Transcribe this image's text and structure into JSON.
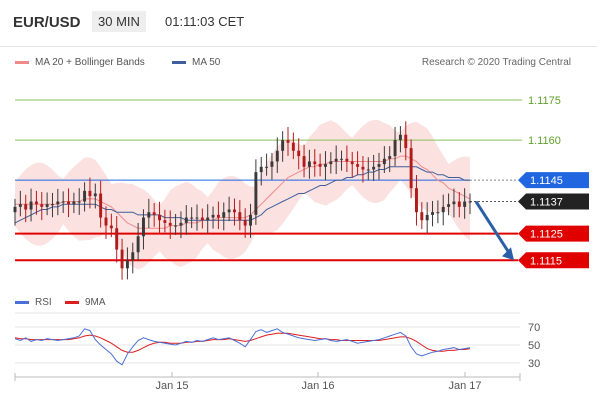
{
  "header": {
    "pair": "EUR/USD",
    "timeframe": "30 MIN",
    "time": "01:11:03 CET"
  },
  "legend": {
    "ma20": "MA 20 + Bollinger Bands",
    "ma50": "MA 50",
    "ma20_color": "#f08a8a",
    "ma50_color": "#3f5f9a"
  },
  "credit": "Research © 2020 Trading Central",
  "rsi_legend": {
    "rsi": "RSI",
    "ma": "9MA",
    "rsi_color": "#4a6fd6",
    "ma_color": "#dd1e1e"
  },
  "chart_data": [
    {
      "type": "candlestick",
      "ylim": [
        1.1105,
        1.1181
      ],
      "price_levels": [
        {
          "value": 1.1175,
          "label": "1.1175",
          "color": "#8ac15a",
          "kind": "resistance"
        },
        {
          "value": 1.116,
          "label": "1.1160",
          "color": "#8ac15a",
          "kind": "resistance"
        },
        {
          "value": 1.1145,
          "label": "1.1145",
          "color": "#1f66e0",
          "kind": "pivot"
        },
        {
          "value": 1.1137,
          "label": "1.1137",
          "color": "#222222",
          "kind": "last"
        },
        {
          "value": 1.1125,
          "label": "1.1125",
          "color": "#e00000",
          "kind": "support"
        },
        {
          "value": 1.1115,
          "label": "1.1115",
          "color": "#e00000",
          "kind": "support"
        }
      ],
      "x_ticks": [
        "Jan 15",
        "Jan 16",
        "Jan 17"
      ],
      "close_path": [
        1.1135,
        1.1136,
        1.1134,
        1.1137,
        1.1136,
        1.1135,
        1.1136,
        1.1136,
        1.1137,
        1.1137,
        1.1136,
        1.1137,
        1.1137,
        1.1141,
        1.1139,
        1.114,
        1.1131,
        1.1128,
        1.1127,
        1.1119,
        1.1112,
        1.1115,
        1.1118,
        1.1124,
        1.1131,
        1.1133,
        1.1132,
        1.113,
        1.1129,
        1.1128,
        1.1128,
        1.1129,
        1.1131,
        1.1131,
        1.1131,
        1.113,
        1.1131,
        1.1132,
        1.1131,
        1.1133,
        1.1134,
        1.1133,
        1.113,
        1.1128,
        1.1132,
        1.1148,
        1.115,
        1.115,
        1.1152,
        1.1156,
        1.116,
        1.1159,
        1.1156,
        1.1154,
        1.115,
        1.1152,
        1.1151,
        1.115,
        1.1151,
        1.1152,
        1.1153,
        1.1153,
        1.1152,
        1.1151,
        1.115,
        1.1149,
        1.1149,
        1.115,
        1.1151,
        1.1153,
        1.1154,
        1.116,
        1.1162,
        1.1157,
        1.1142,
        1.1133,
        1.113,
        1.1132,
        1.1133,
        1.1133,
        1.1135,
        1.1136,
        1.1137,
        1.1135,
        1.1137,
        1.1137
      ],
      "ma20": [
        1.1136,
        1.1136,
        1.1136,
        1.1136,
        1.1136,
        1.1136,
        1.1136,
        1.1136,
        1.1136,
        1.1137,
        1.1137,
        1.1137,
        1.1137,
        1.1138,
        1.1138,
        1.1138,
        1.1137,
        1.1136,
        1.1135,
        1.1133,
        1.1131,
        1.1129,
        1.1128,
        1.1127,
        1.1127,
        1.1127,
        1.1127,
        1.1127,
        1.1127,
        1.1128,
        1.1128,
        1.1128,
        1.1129,
        1.1129,
        1.1129,
        1.113,
        1.113,
        1.113,
        1.1131,
        1.1131,
        1.1131,
        1.1131,
        1.1131,
        1.1131,
        1.1132,
        1.1134,
        1.1136,
        1.1138,
        1.114,
        1.1142,
        1.1144,
        1.1146,
        1.1147,
        1.1148,
        1.1149,
        1.115,
        1.115,
        1.1151,
        1.1151,
        1.1152,
        1.1152,
        1.1152,
        1.1152,
        1.1152,
        1.1152,
        1.1152,
        1.1152,
        1.1152,
        1.1152,
        1.1152,
        1.1153,
        1.1153,
        1.1154,
        1.1154,
        1.1153,
        1.1152,
        1.115,
        1.1149,
        1.1147,
        1.1145,
        1.1144,
        1.1142,
        1.1141,
        1.114,
        1.1139,
        1.1138
      ],
      "ma50": [
        1.1129,
        1.113,
        1.1131,
        1.1132,
        1.1133,
        1.1134,
        1.1134,
        1.1135,
        1.1135,
        1.1136,
        1.1136,
        1.1136,
        1.1136,
        1.1136,
        1.1136,
        1.1136,
        1.1135,
        1.1134,
        1.1134,
        1.1133,
        1.1133,
        1.1133,
        1.1133,
        1.1132,
        1.1132,
        1.1132,
        1.1132,
        1.1132,
        1.1131,
        1.1131,
        1.1131,
        1.1131,
        1.113,
        1.113,
        1.113,
        1.113,
        1.113,
        1.113,
        1.113,
        1.113,
        1.113,
        1.113,
        1.113,
        1.113,
        1.113,
        1.1131,
        1.1132,
        1.1134,
        1.1135,
        1.1136,
        1.1137,
        1.1138,
        1.1139,
        1.114,
        1.114,
        1.1141,
        1.1142,
        1.1143,
        1.1143,
        1.1144,
        1.1145,
        1.1145,
        1.1146,
        1.1146,
        1.1147,
        1.1147,
        1.1148,
        1.1148,
        1.1149,
        1.1149,
        1.115,
        1.115,
        1.115,
        1.115,
        1.115,
        1.115,
        1.1149,
        1.1148,
        1.1148,
        1.1147,
        1.1147,
        1.1146,
        1.1146,
        1.1146,
        1.1145,
        1.1145
      ],
      "bb_width": 0.0012,
      "forecast": [
        1.1137,
        1.1115
      ]
    },
    {
      "type": "line",
      "ylim": [
        20,
        80
      ],
      "y_ticks": [
        70,
        50,
        30
      ],
      "rsi": [
        57,
        55,
        58,
        54,
        56,
        55,
        57,
        56,
        55,
        56,
        57,
        58,
        60,
        68,
        66,
        56,
        50,
        45,
        40,
        32,
        28,
        40,
        48,
        55,
        58,
        56,
        54,
        53,
        52,
        51,
        50,
        52,
        54,
        53,
        55,
        54,
        56,
        58,
        56,
        57,
        58,
        55,
        52,
        48,
        56,
        65,
        67,
        64,
        66,
        68,
        64,
        62,
        60,
        58,
        57,
        56,
        55,
        56,
        57,
        55,
        54,
        55,
        56,
        54,
        52,
        53,
        54,
        55,
        56,
        58,
        60,
        62,
        64,
        60,
        48,
        40,
        38,
        40,
        42,
        43,
        45,
        46,
        47,
        45,
        46,
        47
      ],
      "ma9": [
        58,
        57,
        57,
        56,
        56,
        56,
        56,
        56,
        56,
        56,
        56,
        57,
        58,
        60,
        61,
        60,
        58,
        55,
        52,
        48,
        44,
        42,
        42,
        44,
        47,
        50,
        52,
        53,
        53,
        52,
        52,
        52,
        53,
        53,
        54,
        54,
        55,
        56,
        56,
        56,
        57,
        56,
        55,
        54,
        55,
        57,
        59,
        61,
        62,
        63,
        63,
        63,
        62,
        61,
        60,
        59,
        58,
        57,
        57,
        56,
        56,
        55,
        55,
        55,
        55,
        55,
        55,
        55,
        55,
        56,
        57,
        58,
        59,
        59,
        57,
        54,
        50,
        46,
        44,
        43,
        43,
        44,
        44,
        45,
        45,
        46
      ]
    }
  ]
}
